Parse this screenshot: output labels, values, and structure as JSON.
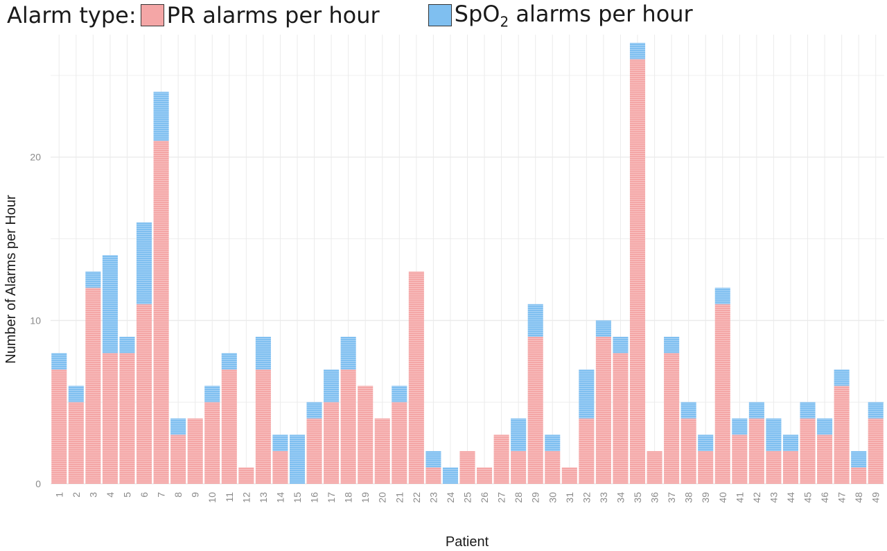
{
  "legend": {
    "title": "Alarm type:",
    "items": [
      {
        "label": "PR alarms per hour",
        "color": "#f4a6a6"
      },
      {
        "label_prefix": "SpO",
        "label_sub": "2",
        "label_suffix": " alarms per hour",
        "color": "#7fbff0"
      }
    ]
  },
  "chart_data": {
    "type": "bar",
    "stacked": true,
    "xlabel": "Patient",
    "ylabel": "Number of Alarms per Hour",
    "ylim": [
      0,
      27.5
    ],
    "yticks": [
      0,
      10,
      20
    ],
    "grid": true,
    "legend_position": "top",
    "categories": [
      "1",
      "2",
      "3",
      "4",
      "5",
      "6",
      "7",
      "8",
      "9",
      "10",
      "11",
      "12",
      "13",
      "14",
      "15",
      "16",
      "17",
      "18",
      "19",
      "20",
      "21",
      "22",
      "23",
      "24",
      "25",
      "26",
      "27",
      "28",
      "29",
      "30",
      "31",
      "32",
      "33",
      "34",
      "35",
      "36",
      "37",
      "38",
      "39",
      "40",
      "41",
      "42",
      "43",
      "44",
      "45",
      "46",
      "47",
      "48",
      "49"
    ],
    "series": [
      {
        "name": "PR alarms per hour",
        "color": "#f4a6a6",
        "values": [
          7,
          5,
          12,
          8,
          8,
          11,
          21,
          3,
          4,
          5,
          7,
          1,
          7,
          2,
          0,
          4,
          5,
          7,
          6,
          4,
          5,
          13,
          1,
          0,
          2,
          1,
          3,
          2,
          9,
          2,
          1,
          4,
          9,
          8,
          26,
          2,
          8,
          4,
          2,
          11,
          3,
          4,
          2,
          2,
          4,
          3,
          6,
          1,
          4
        ]
      },
      {
        "name": "SpO2 alarms per hour",
        "color": "#7fbff0",
        "values": [
          1,
          1,
          1,
          6,
          1,
          5,
          3,
          1,
          0,
          1,
          1,
          0,
          2,
          1,
          3,
          1,
          2,
          2,
          0,
          0,
          1,
          0,
          1,
          1,
          0,
          0,
          0,
          2,
          2,
          1,
          0,
          3,
          1,
          1,
          1,
          0,
          1,
          1,
          1,
          1,
          1,
          1,
          2,
          1,
          1,
          1,
          1,
          1,
          1
        ]
      }
    ]
  }
}
